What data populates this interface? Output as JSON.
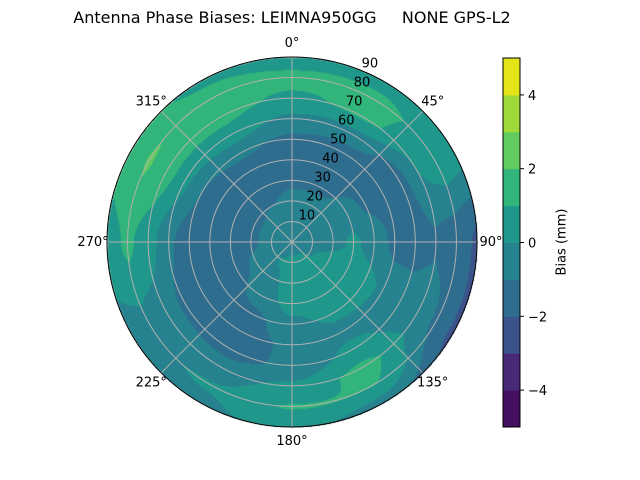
{
  "chart_data": {
    "type": "contour",
    "projection": "polar",
    "title": "Antenna Phase Biases: LEIMNA950GG     NONE GPS-L2",
    "theta_zero": "north",
    "theta_direction": "clockwise",
    "angle_tick_labels": [
      "0°",
      "45°",
      "90°",
      "135°",
      "180°",
      "225°",
      "270°",
      "315°"
    ],
    "angle_ticks": [
      0,
      45,
      90,
      135,
      180,
      225,
      270,
      315
    ],
    "radial_ticks": [
      10,
      20,
      30,
      40,
      50,
      60,
      70,
      80,
      90
    ],
    "radial_tick_labels": [
      "10",
      "20",
      "30",
      "40",
      "50",
      "60",
      "70",
      "80",
      "90"
    ],
    "rlim": [
      0,
      90
    ],
    "grid": true,
    "colormap": "viridis",
    "levels": [
      -5,
      -4,
      -3,
      -2,
      -1,
      0,
      1,
      2,
      3,
      4,
      5
    ],
    "level_colors": [
      "#440f5e",
      "#482979",
      "#3b528b",
      "#2e6d8e",
      "#26828e",
      "#1f988b",
      "#32b57a",
      "#62cb5f",
      "#a0da39",
      "#e5e419"
    ],
    "colorbar": {
      "label": "Bias (mm)",
      "ticks": [
        -4,
        -2,
        0,
        2,
        4
      ],
      "tick_labels": [
        "−4",
        "−2",
        "0",
        "2",
        "4"
      ],
      "range": [
        -5,
        5
      ]
    },
    "grid_zenith": [
      0,
      10,
      20,
      30,
      40,
      50,
      60,
      70,
      80,
      90
    ],
    "grid_azimuth": [
      0,
      30,
      60,
      90,
      120,
      150,
      180,
      210,
      240,
      270,
      300,
      330
    ],
    "values": [
      [
        -0.5,
        -0.5,
        -0.5,
        -0.5,
        -0.5,
        -0.5,
        -0.5,
        -0.5,
        -0.5,
        -0.5,
        -0.5,
        -0.5
      ],
      [
        -0.5,
        -0.5,
        -0.5,
        -0.4,
        -0.1,
        0.3,
        0.3,
        0.1,
        -0.5,
        -0.6,
        -0.6,
        -0.5
      ],
      [
        -0.7,
        -0.5,
        -0.5,
        -0.3,
        0.5,
        0.5,
        0.5,
        -0.2,
        -0.8,
        -1.2,
        -1.2,
        -1.0
      ],
      [
        -1.2,
        -1.3,
        -0.6,
        0.2,
        0.5,
        0.5,
        0.4,
        -0.5,
        -1.3,
        -1.5,
        -1.5,
        -1.4
      ],
      [
        -1.5,
        -1.5,
        -1.2,
        -0.4,
        0.3,
        0.2,
        -0.3,
        -1.3,
        -1.6,
        -1.7,
        -1.6,
        -1.5
      ],
      [
        -1.3,
        -1.4,
        -1.5,
        -1.3,
        -0.2,
        -0.3,
        -0.8,
        -1.5,
        -1.8,
        -1.6,
        -1.0,
        -0.8
      ],
      [
        -0.3,
        -0.5,
        -1.5,
        -1.4,
        -0.5,
        0.3,
        -0.8,
        -1.4,
        -1.2,
        -0.8,
        0.3,
        0.6
      ],
      [
        0.8,
        1.2,
        0.0,
        -1.1,
        -0.4,
        1.3,
        0.3,
        -0.5,
        -0.5,
        0.5,
        1.5,
        1.3
      ],
      [
        1.3,
        1.3,
        0.5,
        -1.5,
        -1.2,
        1.0,
        1.1,
        0.1,
        -0.2,
        1.2,
        2.1,
        1.4
      ],
      [
        0.5,
        0.6,
        0.3,
        -2.2,
        -2.3,
        -0.6,
        0.3,
        -0.2,
        -0.3,
        0.6,
        1.4,
        0.8
      ]
    ]
  }
}
